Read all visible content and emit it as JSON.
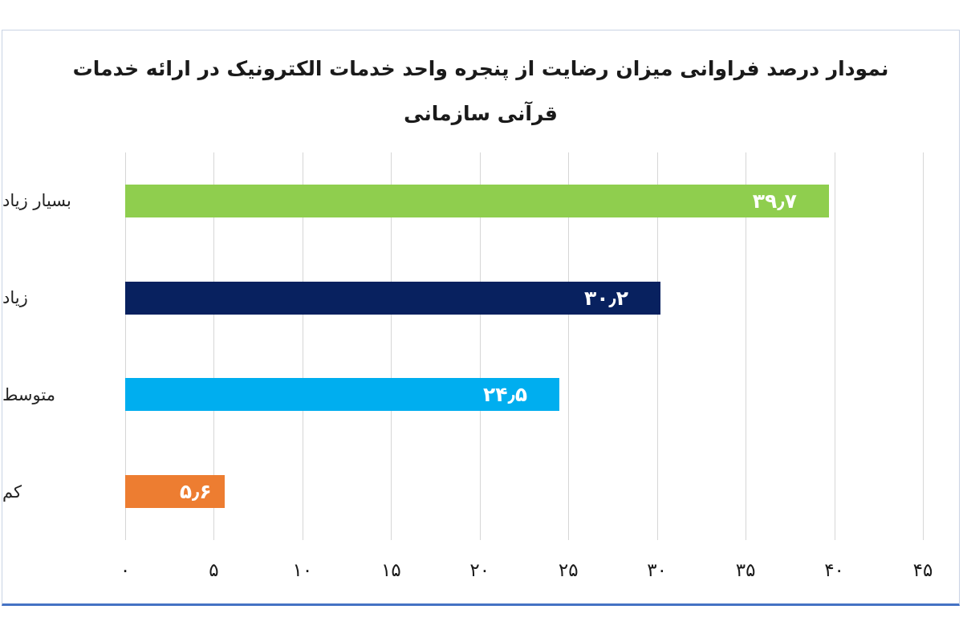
{
  "title": {
    "line1": "نمودار درصد فراوانی میزان رضایت از پنجره واحد خدمات الکترونیک در ارائه خدمات",
    "line2": "قرآنی سازمانی"
  },
  "colors": {
    "frame_border": "#c9d3e4",
    "frame_bottom_border": "#4472c4",
    "gridline": "#d6d6d6",
    "value_label_text": "#ffffff",
    "title_text": "#1a1a1a"
  },
  "chart_data": {
    "type": "bar",
    "orientation": "horizontal",
    "title": "نمودار درصد فراوانی میزان رضایت از پنجره واحد خدمات الکترونیک در ارائه خدمات قرآنی سازمانی",
    "categories": [
      "بسیار زیاد",
      "زیاد",
      "متوسط",
      "کم"
    ],
    "values": [
      39.7,
      30.2,
      24.5,
      5.6
    ],
    "value_labels": [
      "۳۹٫۷",
      "۳۰٫۲",
      "۲۴٫۵",
      "۵٫۶"
    ],
    "bar_colors": [
      "#8fce4e",
      "#08215f",
      "#00aeef",
      "#ed7d31"
    ],
    "xlabel": "",
    "ylabel": "",
    "xlim": [
      0,
      45
    ],
    "xticks": [
      0,
      5,
      10,
      15,
      20,
      25,
      30,
      35,
      40,
      45
    ],
    "xtick_labels": [
      "۰",
      "۵",
      "۱۰",
      "۱۵",
      "۲۰",
      "۲۵",
      "۳۰",
      "۳۵",
      "۴۰",
      "۴۵"
    ],
    "grid": true,
    "legend": false
  }
}
